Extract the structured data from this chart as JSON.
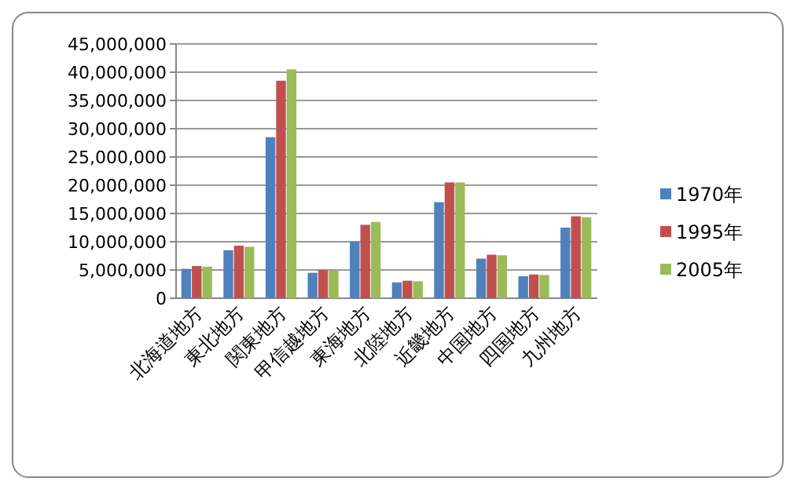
{
  "chart_data": {
    "type": "bar",
    "categories": [
      "北海道地方",
      "東北地方",
      "関東地方",
      "甲信越地方",
      "東海地方",
      "北陸地方",
      "近畿地方",
      "中国地方",
      "四国地方",
      "九州地方"
    ],
    "series": [
      {
        "name": "1970年",
        "color": "#4f81bd",
        "values": [
          5200000,
          8500000,
          28500000,
          4500000,
          10000000,
          2800000,
          17000000,
          7000000,
          3900000,
          12500000
        ]
      },
      {
        "name": "1995年",
        "color": "#c0504d",
        "values": [
          5700000,
          9300000,
          38500000,
          5000000,
          13000000,
          3100000,
          20500000,
          7700000,
          4200000,
          14500000
        ]
      },
      {
        "name": "2005年",
        "color": "#9bbb59",
        "values": [
          5600000,
          9100000,
          40500000,
          4900000,
          13500000,
          3000000,
          20500000,
          7600000,
          4100000,
          14300000
        ]
      }
    ],
    "ylim": [
      0,
      45000000
    ],
    "yticks": [
      {
        "value": 0,
        "label": "0"
      },
      {
        "value": 5000000,
        "label": "5,000,000"
      },
      {
        "value": 10000000,
        "label": "10,000,000"
      },
      {
        "value": 15000000,
        "label": "15,000,000"
      },
      {
        "value": 20000000,
        "label": "20,000,000"
      },
      {
        "value": 25000000,
        "label": "25,000,000"
      },
      {
        "value": 30000000,
        "label": "30,000,000"
      },
      {
        "value": 35000000,
        "label": "35,000,000"
      },
      {
        "value": 40000000,
        "label": "40,000,000"
      },
      {
        "value": 45000000,
        "label": "45,000,000"
      }
    ],
    "grid": "y",
    "legend": "right"
  }
}
